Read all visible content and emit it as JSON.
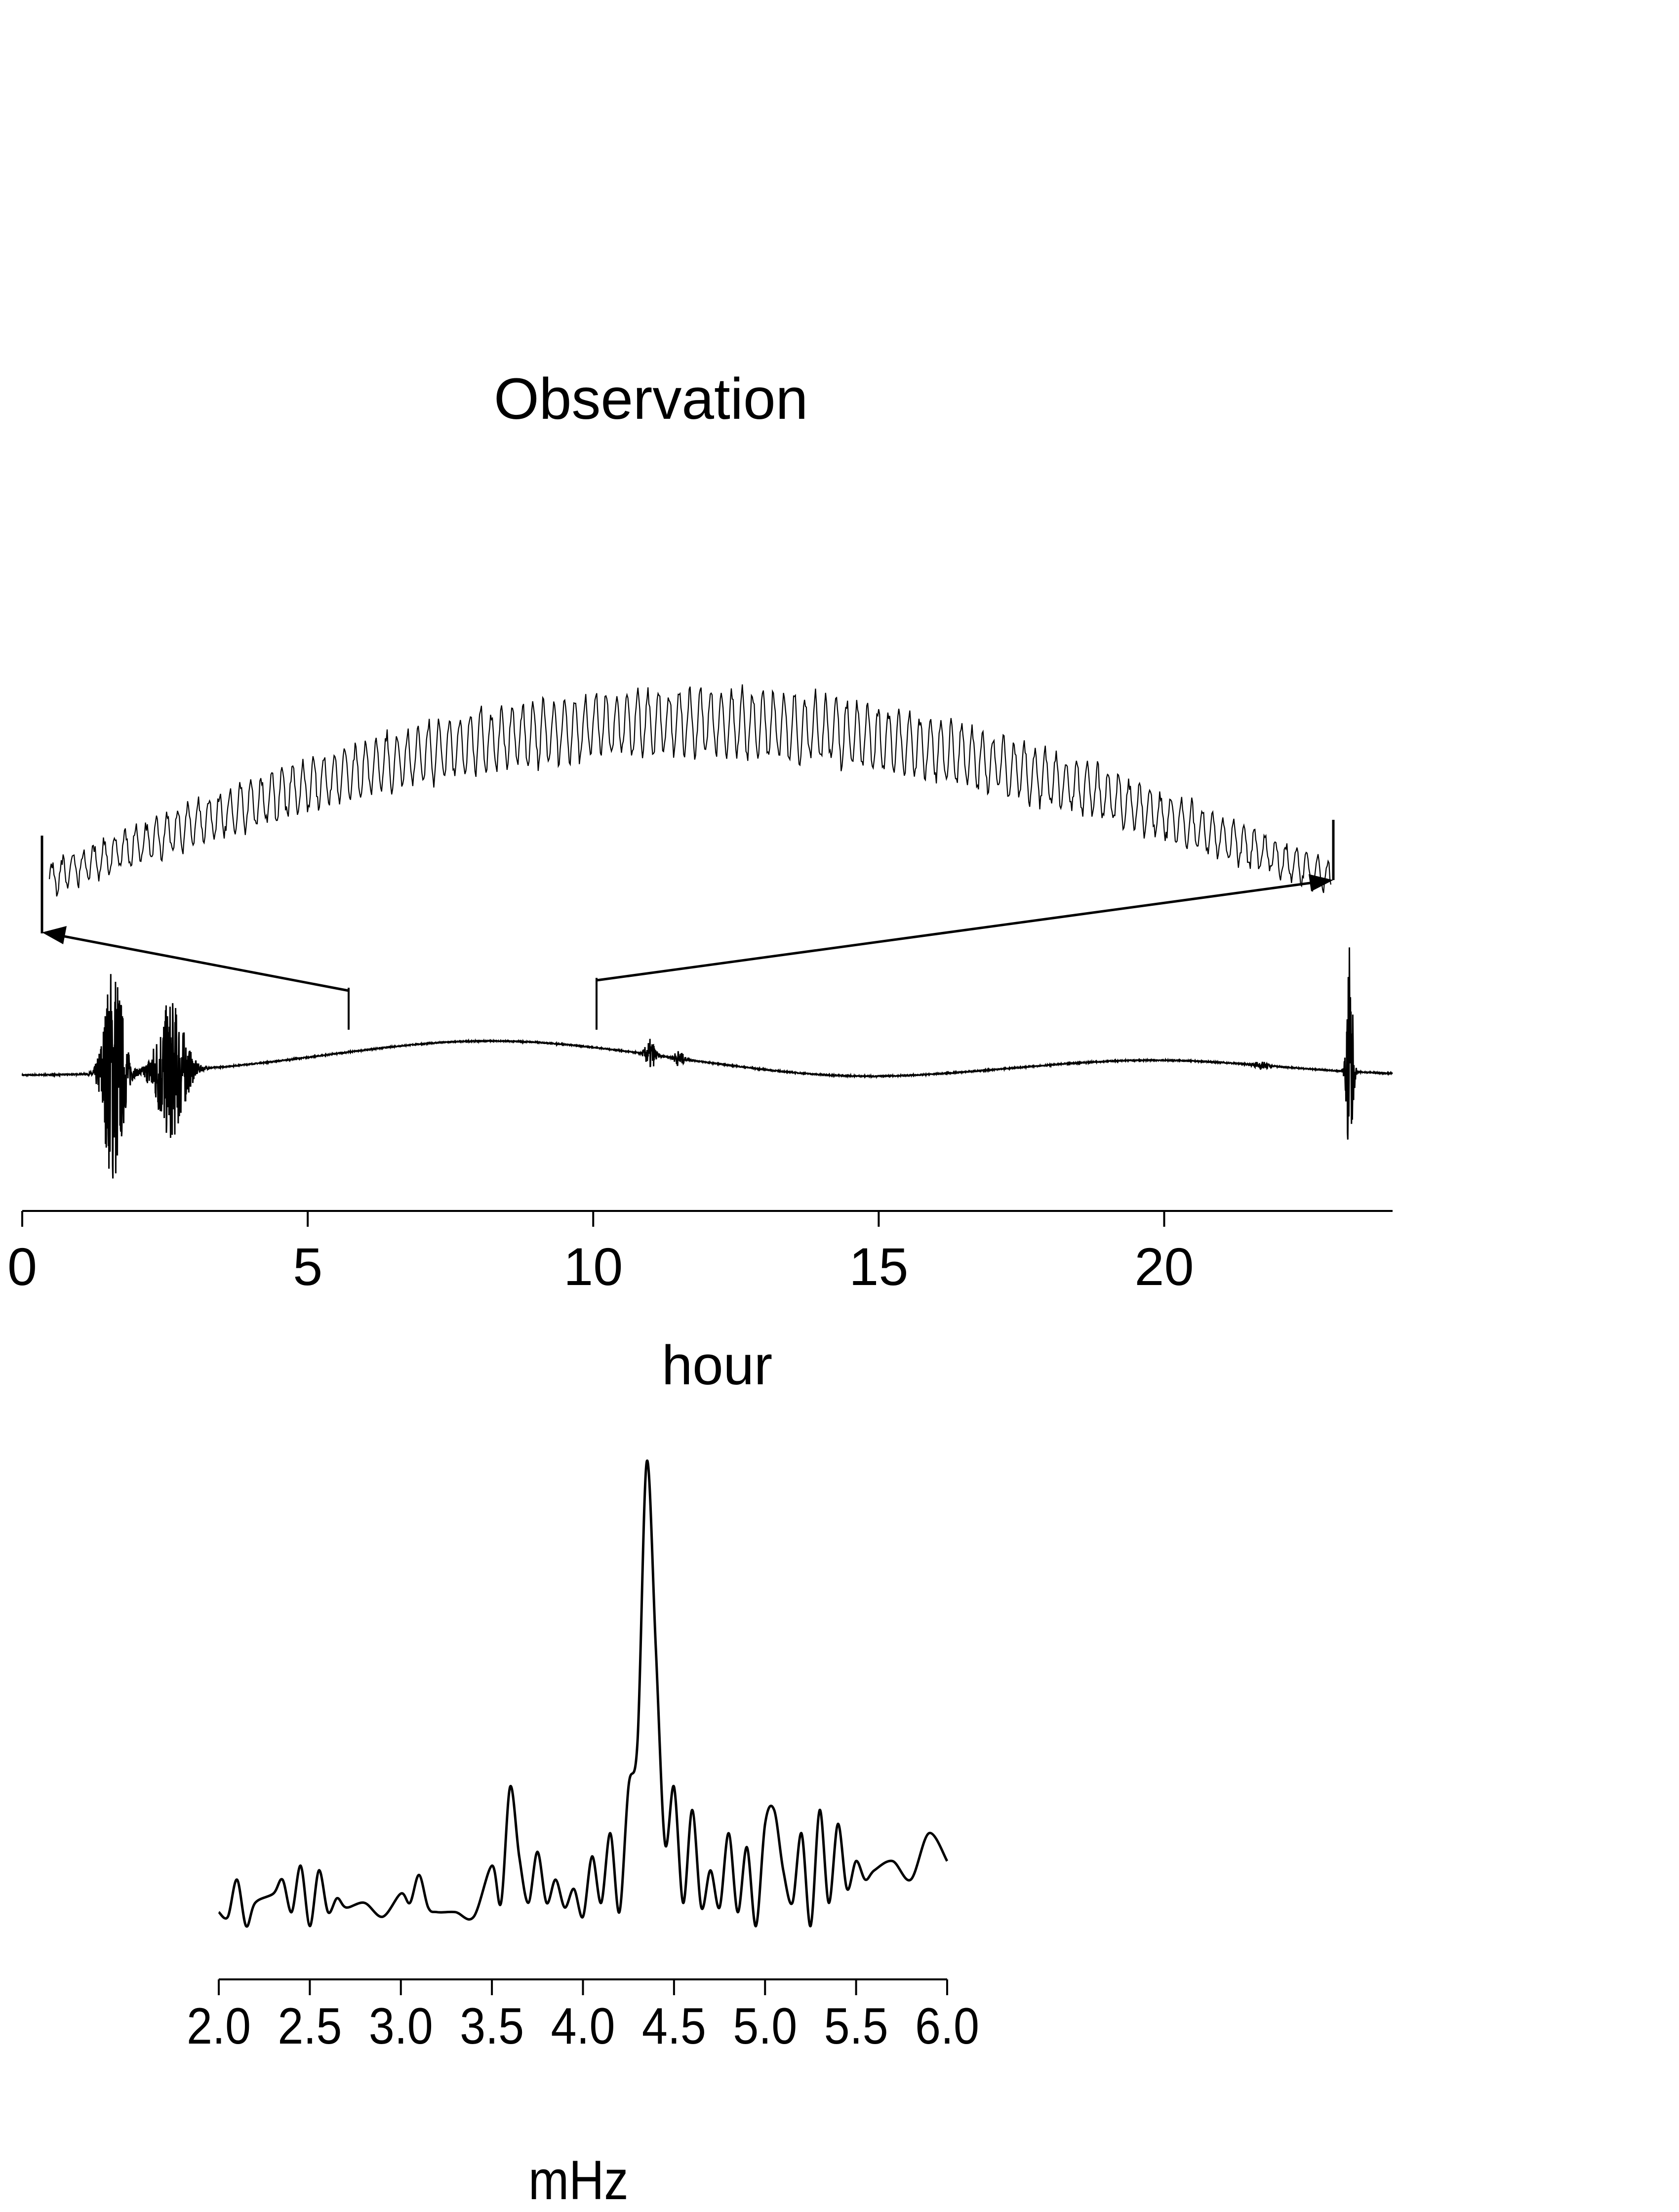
{
  "chart_data": [
    {
      "type": "line",
      "title": "Observation",
      "xlabel": "hour",
      "ylabel": "",
      "xlim": [
        0,
        24
      ],
      "xticks": [
        "0",
        "5",
        "10",
        "15",
        "20"
      ],
      "grid": false,
      "series": [
        {
          "values_description_free": true,
          "x": [
            0,
            1,
            1.5,
            2,
            2.5,
            3,
            3.5,
            4,
            5,
            6,
            7,
            8,
            9,
            10,
            11,
            11.5,
            12,
            13,
            14,
            15,
            16,
            17,
            18,
            19,
            20,
            21,
            22,
            23,
            23.2,
            24
          ],
          "y": [
            0,
            0.02,
            0.35,
            0.15,
            0.45,
            0.25,
            0.08,
            0.14,
            0.22,
            0.3,
            0.35,
            0.34,
            0.3,
            0.24,
            0.18,
            0.12,
            0.08,
            0.03,
            0.0,
            -0.02,
            -0.01,
            0.02,
            0.05,
            0.07,
            0.08,
            0.06,
            0.03,
            0.02,
            0.9,
            0.02
          ]
        }
      ],
      "inset": {
        "x_range_hours": [
          5.7,
          10.0
        ],
        "arrows": [
          "to-left-end",
          "to-right-end"
        ]
      }
    },
    {
      "type": "line",
      "title": "",
      "xlabel": "mHz",
      "ylabel": "",
      "xlim": [
        2.0,
        6.0
      ],
      "xticks": [
        "2.0",
        "2.5",
        "3.0",
        "3.5",
        "4.0",
        "4.5",
        "5.0",
        "5.5",
        "6.0"
      ],
      "grid": false,
      "series": [
        {
          "x": [
            2.0,
            2.05,
            2.1,
            2.15,
            2.2,
            2.3,
            2.35,
            2.4,
            2.45,
            2.5,
            2.55,
            2.6,
            2.65,
            2.7,
            2.8,
            2.9,
            3.0,
            3.05,
            3.1,
            3.15,
            3.2,
            3.3,
            3.4,
            3.5,
            3.55,
            3.6,
            3.65,
            3.7,
            3.75,
            3.8,
            3.85,
            3.9,
            3.95,
            4.0,
            4.05,
            4.1,
            4.15,
            4.2,
            4.25,
            4.3,
            4.35,
            4.4,
            4.45,
            4.5,
            4.55,
            4.6,
            4.65,
            4.7,
            4.75,
            4.8,
            4.85,
            4.9,
            4.95,
            5.0,
            5.05,
            5.1,
            5.15,
            5.2,
            5.25,
            5.3,
            5.35,
            5.4,
            5.45,
            5.5,
            5.55,
            5.6,
            5.7,
            5.8,
            5.9,
            6.0
          ],
          "y": [
            0.03,
            0.02,
            0.1,
            0.0,
            0.05,
            0.07,
            0.1,
            0.03,
            0.13,
            0.0,
            0.12,
            0.03,
            0.06,
            0.04,
            0.05,
            0.02,
            0.07,
            0.05,
            0.11,
            0.04,
            0.03,
            0.03,
            0.02,
            0.13,
            0.05,
            0.3,
            0.15,
            0.05,
            0.16,
            0.05,
            0.1,
            0.04,
            0.08,
            0.02,
            0.15,
            0.05,
            0.2,
            0.03,
            0.3,
            0.4,
            1.0,
            0.6,
            0.18,
            0.3,
            0.05,
            0.25,
            0.04,
            0.12,
            0.04,
            0.2,
            0.03,
            0.17,
            0.0,
            0.22,
            0.25,
            0.12,
            0.05,
            0.2,
            0.0,
            0.25,
            0.05,
            0.22,
            0.08,
            0.14,
            0.1,
            0.12,
            0.14,
            0.1,
            0.2,
            0.14
          ]
        }
      ]
    }
  ]
}
